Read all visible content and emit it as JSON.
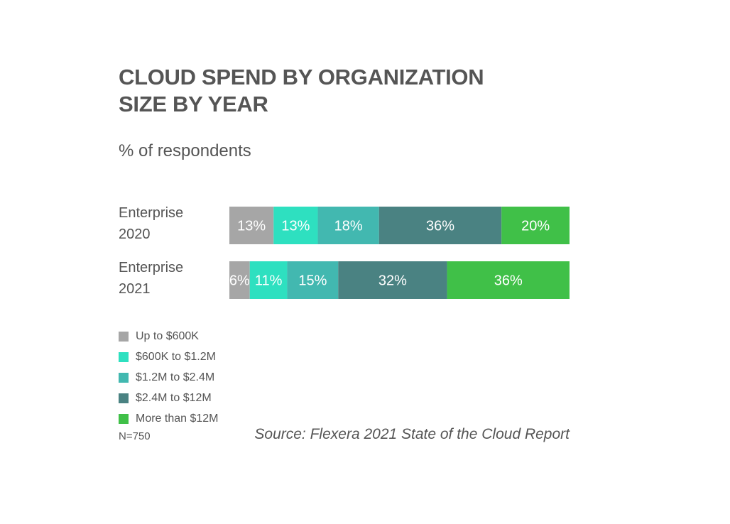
{
  "chart_data": {
    "type": "bar",
    "orientation": "horizontal",
    "stacked": true,
    "title_lines": [
      "CLOUD SPEND BY ORGANIZATION",
      "SIZE BY YEAR"
    ],
    "subtitle": "% of respondents",
    "categories": [
      {
        "lines": [
          "Enterprise",
          "2020"
        ]
      },
      {
        "lines": [
          "Enterprise",
          "2021"
        ]
      }
    ],
    "series": [
      {
        "name": "Up to $600K",
        "color": "#a6a6a6",
        "values": [
          13,
          6
        ],
        "labels": [
          "13%",
          "6%"
        ]
      },
      {
        "name": "$600K to $1.2M",
        "color": "#2ee0c0",
        "values": [
          13,
          11
        ],
        "labels": [
          "13%",
          "11%"
        ]
      },
      {
        "name": "$1.2M to $2.4M",
        "color": "#42b8b0",
        "values": [
          18,
          15
        ],
        "labels": [
          "18%",
          "15%"
        ]
      },
      {
        "name": "$2.4M to $12M",
        "color": "#4a8282",
        "values": [
          36,
          32
        ],
        "labels": [
          "36%",
          "32%"
        ]
      },
      {
        "name": "More than $12M",
        "color": "#40c048",
        "values": [
          20,
          36
        ],
        "labels": [
          "20%",
          "36%"
        ]
      }
    ],
    "xlim": [
      0,
      100
    ],
    "grid": false,
    "legend_position": "bottom-left",
    "note": "N=750",
    "source": "Source: Flexera 2021 State of the Cloud Report"
  }
}
